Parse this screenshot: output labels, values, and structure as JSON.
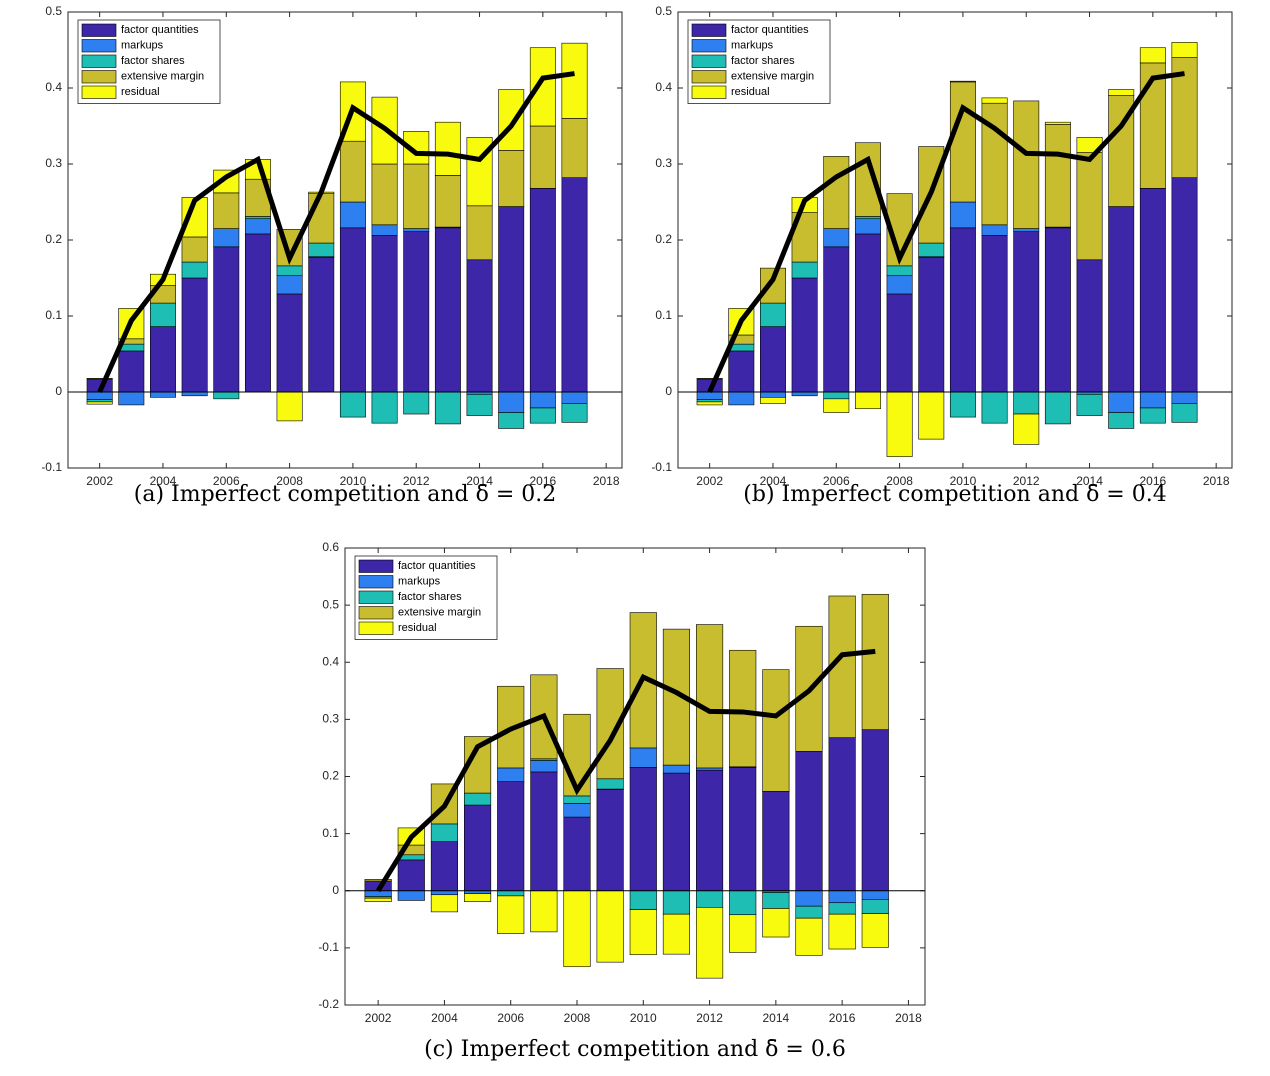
{
  "chart_data": [
    {
      "type": "bar",
      "stacked": true,
      "caption": "(a) Imperfect competition and δ̄ = 0.2",
      "x": [
        2002,
        2003,
        2004,
        2005,
        2006,
        2007,
        2008,
        2009,
        2010,
        2011,
        2012,
        2013,
        2014,
        2015,
        2016,
        2017
      ],
      "series": [
        {
          "name": "factor quantities",
          "color": "#3e26a8",
          "values": [
            0.017,
            0.054,
            0.086,
            0.15,
            0.191,
            0.208,
            0.129,
            0.177,
            0.216,
            0.206,
            0.211,
            0.216,
            0.174,
            0.244,
            0.268,
            0.282
          ]
        },
        {
          "name": "markups",
          "color": "#2e80f0",
          "values": [
            -0.01,
            -0.017,
            -0.007,
            -0.005,
            0.024,
            0.02,
            0.024,
            0.001,
            0.034,
            0.014,
            0.004,
            0.001,
            -0.003,
            -0.027,
            -0.021,
            -0.015
          ]
        },
        {
          "name": "factor shares",
          "color": "#1ebeb5",
          "values": [
            -0.003,
            0.009,
            0.031,
            0.021,
            -0.009,
            0.003,
            0.013,
            0.018,
            -0.033,
            -0.041,
            -0.029,
            -0.042,
            -0.028,
            -0.021,
            -0.02,
            -0.025
          ]
        },
        {
          "name": "extensive margin",
          "color": "#c8bd2e",
          "values": [
            0.001,
            0.007,
            0.023,
            0.033,
            0.047,
            0.049,
            0.048,
            0.065,
            0.08,
            0.08,
            0.085,
            0.068,
            0.071,
            0.074,
            0.082,
            0.078
          ]
        },
        {
          "name": "residual",
          "color": "#f9fb0e",
          "values": [
            -0.003,
            0.04,
            0.015,
            0.052,
            0.03,
            0.026,
            -0.038,
            0.002,
            0.078,
            0.088,
            0.043,
            0.07,
            0.09,
            0.08,
            0.103,
            0.099
          ]
        }
      ],
      "total": {
        "color": "#000000",
        "values": [
          0,
          0.094,
          0.148,
          0.252,
          0.283,
          0.306,
          0.176,
          0.263,
          0.374,
          0.347,
          0.314,
          0.313,
          0.306,
          0.35,
          0.413,
          0.419
        ]
      },
      "xlim": [
        2001,
        2018.5
      ],
      "xticks": [
        2002,
        2004,
        2006,
        2008,
        2010,
        2012,
        2014,
        2016,
        2018
      ],
      "ylim": [
        -0.1,
        0.5
      ],
      "yticks": [
        -0.1,
        0,
        0.1,
        0.2,
        0.3,
        0.4,
        0.5
      ],
      "legend": "upper left"
    },
    {
      "type": "bar",
      "stacked": true,
      "caption": "(b) Imperfect competition and δ̄ = 0.4",
      "x": [
        2002,
        2003,
        2004,
        2005,
        2006,
        2007,
        2008,
        2009,
        2010,
        2011,
        2012,
        2013,
        2014,
        2015,
        2016,
        2017
      ],
      "series": [
        {
          "name": "factor quantities",
          "color": "#3e26a8",
          "values": [
            0.017,
            0.054,
            0.086,
            0.15,
            0.191,
            0.208,
            0.129,
            0.177,
            0.216,
            0.206,
            0.211,
            0.216,
            0.174,
            0.244,
            0.268,
            0.282
          ]
        },
        {
          "name": "markups",
          "color": "#2e80f0",
          "values": [
            -0.01,
            -0.017,
            -0.007,
            -0.005,
            0.024,
            0.02,
            0.024,
            0.001,
            0.034,
            0.014,
            0.004,
            0.001,
            -0.003,
            -0.027,
            -0.021,
            -0.015
          ]
        },
        {
          "name": "factor shares",
          "color": "#1ebeb5",
          "values": [
            -0.003,
            0.009,
            0.031,
            0.021,
            -0.009,
            0.003,
            0.013,
            0.018,
            -0.033,
            -0.041,
            -0.029,
            -0.042,
            -0.028,
            -0.021,
            -0.02,
            -0.025
          ]
        },
        {
          "name": "extensive margin",
          "color": "#c8bd2e",
          "values": [
            0.001,
            0.012,
            0.046,
            0.065,
            0.095,
            0.097,
            0.095,
            0.127,
            0.158,
            0.16,
            0.168,
            0.135,
            0.141,
            0.146,
            0.165,
            0.158
          ]
        },
        {
          "name": "residual",
          "color": "#f9fb0e",
          "values": [
            -0.004,
            0.035,
            -0.008,
            0.02,
            -0.018,
            -0.022,
            -0.085,
            -0.062,
            0.001,
            0.007,
            -0.04,
            0.003,
            0.02,
            0.008,
            0.02,
            0.02
          ]
        }
      ],
      "total": {
        "color": "#000000",
        "values": [
          0,
          0.094,
          0.148,
          0.252,
          0.283,
          0.306,
          0.176,
          0.263,
          0.374,
          0.347,
          0.314,
          0.313,
          0.306,
          0.35,
          0.413,
          0.419
        ]
      },
      "xlim": [
        2001,
        2018.5
      ],
      "xticks": [
        2002,
        2004,
        2006,
        2008,
        2010,
        2012,
        2014,
        2016,
        2018
      ],
      "ylim": [
        -0.1,
        0.5
      ],
      "yticks": [
        -0.1,
        0,
        0.1,
        0.2,
        0.3,
        0.4,
        0.5
      ],
      "legend": "upper left"
    },
    {
      "type": "bar",
      "stacked": true,
      "caption": "(c) Imperfect competition and δ̄ = 0.6",
      "x": [
        2002,
        2003,
        2004,
        2005,
        2006,
        2007,
        2008,
        2009,
        2010,
        2011,
        2012,
        2013,
        2014,
        2015,
        2016,
        2017
      ],
      "series": [
        {
          "name": "factor quantities",
          "color": "#3e26a8",
          "values": [
            0.017,
            0.054,
            0.086,
            0.15,
            0.191,
            0.208,
            0.129,
            0.177,
            0.216,
            0.206,
            0.211,
            0.216,
            0.174,
            0.244,
            0.268,
            0.282
          ]
        },
        {
          "name": "markups",
          "color": "#2e80f0",
          "values": [
            -0.01,
            -0.017,
            -0.007,
            -0.005,
            0.024,
            0.02,
            0.024,
            0.001,
            0.034,
            0.014,
            0.004,
            0.001,
            -0.003,
            -0.027,
            -0.021,
            -0.015
          ]
        },
        {
          "name": "factor shares",
          "color": "#1ebeb5",
          "values": [
            -0.003,
            0.009,
            0.031,
            0.021,
            -0.009,
            0.003,
            0.013,
            0.018,
            -0.033,
            -0.041,
            -0.029,
            -0.042,
            -0.028,
            -0.021,
            -0.02,
            -0.025
          ]
        },
        {
          "name": "extensive margin",
          "color": "#c8bd2e",
          "values": [
            0.003,
            0.017,
            0.07,
            0.099,
            0.143,
            0.147,
            0.143,
            0.193,
            0.237,
            0.238,
            0.251,
            0.204,
            0.213,
            0.219,
            0.248,
            0.237
          ]
        },
        {
          "name": "residual",
          "color": "#f9fb0e",
          "values": [
            -0.006,
            0.03,
            -0.03,
            -0.014,
            -0.066,
            -0.072,
            -0.133,
            -0.125,
            -0.079,
            -0.07,
            -0.124,
            -0.066,
            -0.05,
            -0.065,
            -0.061,
            -0.059
          ]
        }
      ],
      "total": {
        "color": "#000000",
        "values": [
          0,
          0.094,
          0.148,
          0.252,
          0.283,
          0.306,
          0.176,
          0.263,
          0.374,
          0.347,
          0.314,
          0.313,
          0.306,
          0.35,
          0.413,
          0.419
        ]
      },
      "xlim": [
        2001,
        2018.5
      ],
      "xticks": [
        2002,
        2004,
        2006,
        2008,
        2010,
        2012,
        2014,
        2016,
        2018
      ],
      "ylim": [
        -0.2,
        0.6
      ],
      "yticks": [
        -0.2,
        -0.1,
        0,
        0.1,
        0.2,
        0.3,
        0.4,
        0.5,
        0.6
      ],
      "legend": "upper left"
    }
  ]
}
